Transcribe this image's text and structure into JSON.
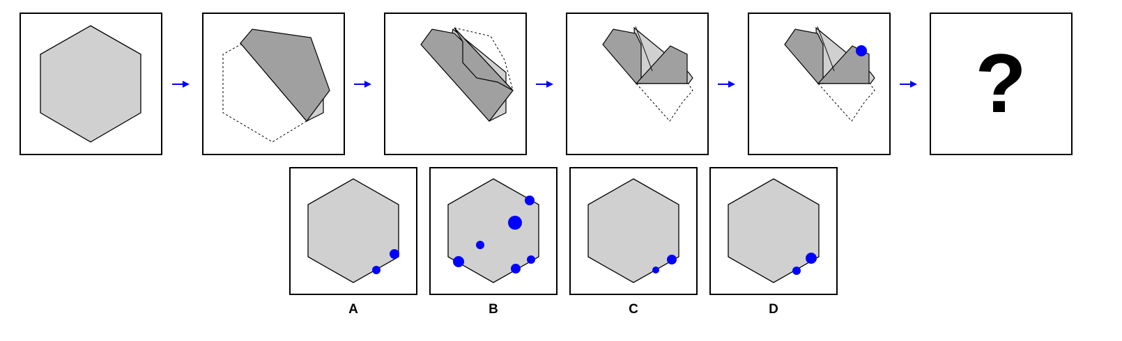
{
  "colors": {
    "paper": "#d0d0d0",
    "folded": "#a0a0a0",
    "punch": "#0000ff",
    "arrow": "#0000ff",
    "stroke": "#000000"
  },
  "question_mark": "?",
  "options": [
    {
      "label": "A"
    },
    {
      "label": "B"
    },
    {
      "label": "C"
    },
    {
      "label": "D"
    }
  ]
}
